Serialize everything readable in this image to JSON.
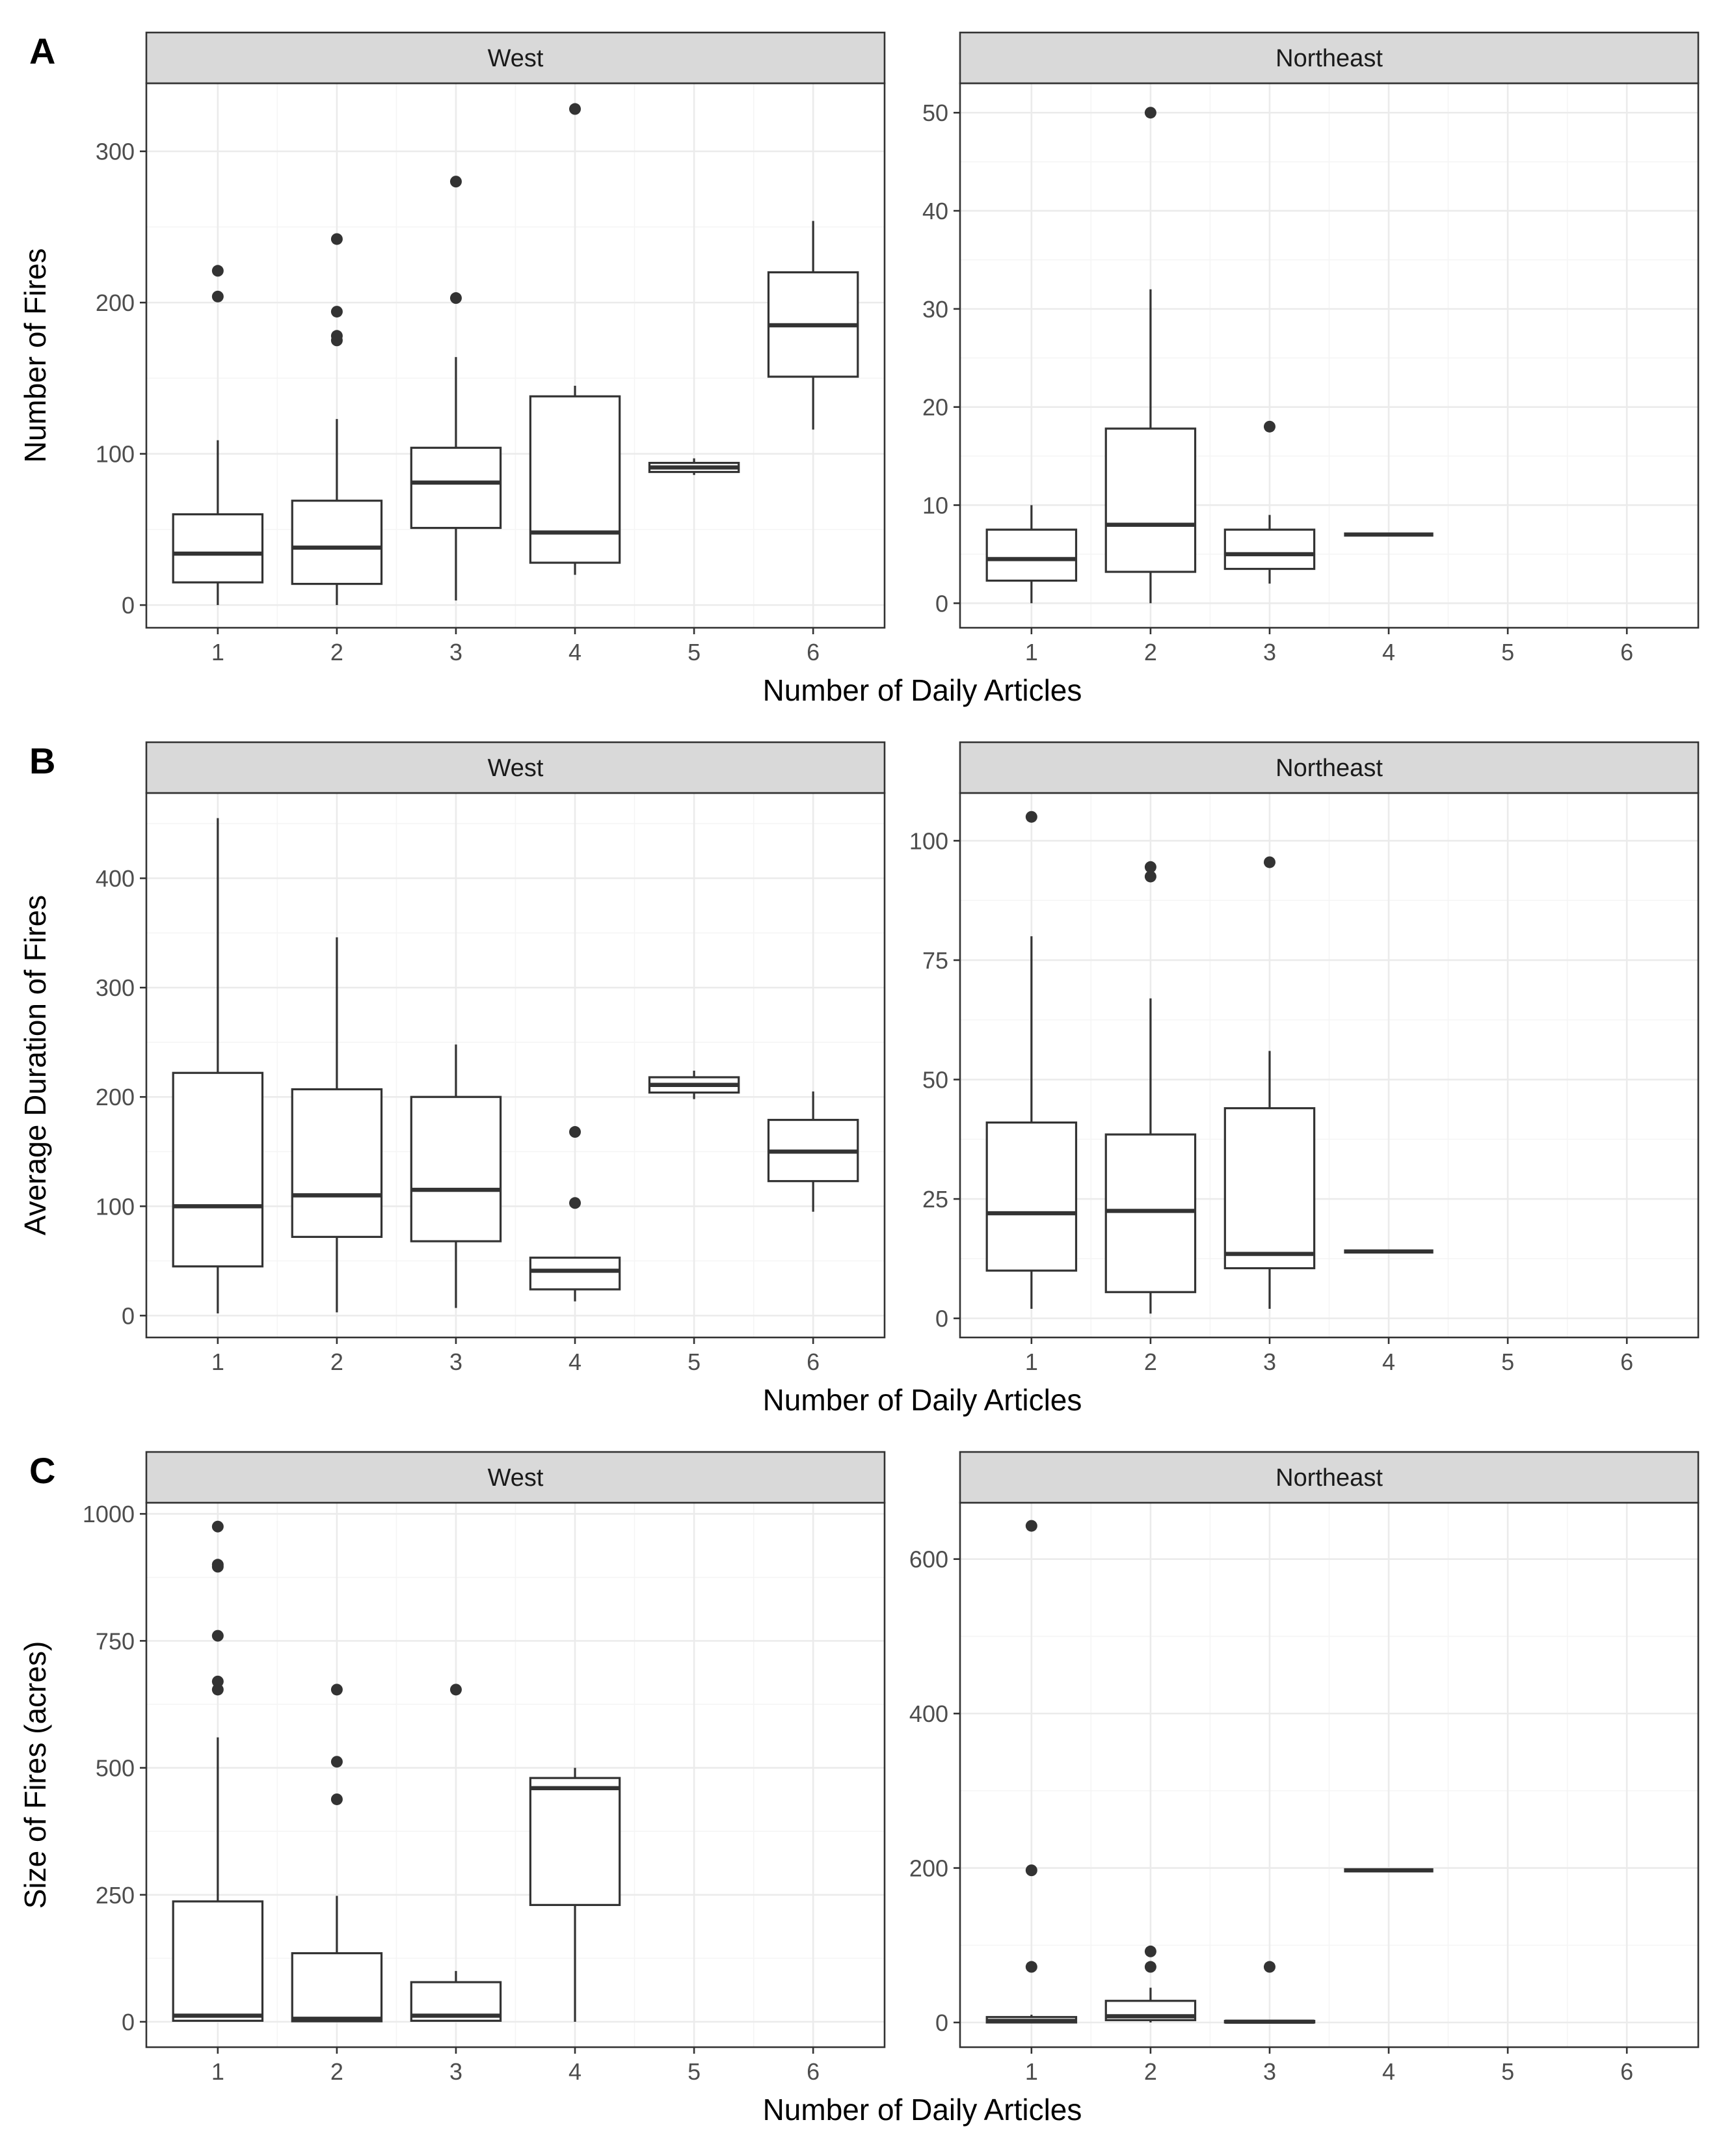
{
  "colors": {
    "strip_fill": "#d9d9d9",
    "grid_major": "#ebebeb",
    "grid_minor": "#f5f5f5",
    "box_stroke": "#333333",
    "point_fill": "#333333",
    "panel_border": "#333333"
  },
  "chart_data": [
    {
      "type": "boxplot",
      "panel_label": "A",
      "ylabel": "Number of Fires",
      "xlabel": "Number of Daily Articles",
      "facets": [
        {
          "title": "West",
          "ylim": [
            -15,
            345
          ],
          "yticks": [
            0,
            100,
            200,
            300
          ],
          "ytick_labels": [
            "0",
            "100",
            "200",
            "300"
          ],
          "xticks": [
            1,
            2,
            3,
            4,
            5,
            6
          ],
          "xtick_labels": [
            "1",
            "2",
            "3",
            "4",
            "5",
            "6"
          ],
          "boxes": [
            {
              "x": 1,
              "q1": 15,
              "median": 34,
              "q3": 60,
              "whisker_low": 0,
              "whisker_high": 109,
              "outliers": [
                204,
                221
              ]
            },
            {
              "x": 2,
              "q1": 14,
              "median": 38,
              "q3": 69,
              "whisker_low": 0,
              "whisker_high": 123,
              "outliers": [
                175,
                178,
                194,
                242
              ]
            },
            {
              "x": 3,
              "q1": 51,
              "median": 81,
              "q3": 104,
              "whisker_low": 3,
              "whisker_high": 164,
              "outliers": [
                203,
                280
              ]
            },
            {
              "x": 4,
              "q1": 28,
              "median": 48,
              "q3": 138,
              "whisker_low": 20,
              "whisker_high": 145,
              "outliers": [
                328
              ]
            },
            {
              "x": 5,
              "q1": 88,
              "median": 91,
              "q3": 94,
              "whisker_low": 86,
              "whisker_high": 97,
              "outliers": []
            },
            {
              "x": 6,
              "q1": 151,
              "median": 185,
              "q3": 220,
              "whisker_low": 116,
              "whisker_high": 254,
              "outliers": []
            }
          ]
        },
        {
          "title": "Northeast",
          "ylim": [
            -2.5,
            53
          ],
          "yticks": [
            0,
            10,
            20,
            30,
            40,
            50
          ],
          "ytick_labels": [
            "0",
            "10",
            "20",
            "30",
            "40",
            "50"
          ],
          "xticks": [
            1,
            2,
            3,
            4,
            5,
            6
          ],
          "xtick_labels": [
            "1",
            "2",
            "3",
            "4",
            "5",
            "6"
          ],
          "boxes": [
            {
              "x": 1,
              "q1": 2.3,
              "median": 4.5,
              "q3": 7.5,
              "whisker_low": 0,
              "whisker_high": 10,
              "outliers": []
            },
            {
              "x": 2,
              "q1": 3.2,
              "median": 8,
              "q3": 17.8,
              "whisker_low": 0,
              "whisker_high": 32,
              "outliers": [
                50
              ]
            },
            {
              "x": 3,
              "q1": 3.5,
              "median": 5,
              "q3": 7.5,
              "whisker_low": 2,
              "whisker_high": 9,
              "outliers": [
                18
              ]
            },
            {
              "x": 4,
              "q1": 7,
              "median": 7,
              "q3": 7,
              "whisker_low": 7,
              "whisker_high": 7,
              "outliers": []
            }
          ]
        }
      ]
    },
    {
      "type": "boxplot",
      "panel_label": "B",
      "ylabel": "Average Duration of Fires",
      "xlabel": "Number of Daily Articles",
      "facets": [
        {
          "title": "West",
          "ylim": [
            -20,
            478
          ],
          "yticks": [
            0,
            100,
            200,
            300,
            400
          ],
          "ytick_labels": [
            "0",
            "100",
            "200",
            "300",
            "400"
          ],
          "xticks": [
            1,
            2,
            3,
            4,
            5,
            6
          ],
          "xtick_labels": [
            "1",
            "2",
            "3",
            "4",
            "5",
            "6"
          ],
          "boxes": [
            {
              "x": 1,
              "q1": 45,
              "median": 100,
              "q3": 222,
              "whisker_low": 2,
              "whisker_high": 455,
              "outliers": []
            },
            {
              "x": 2,
              "q1": 72,
              "median": 110,
              "q3": 207,
              "whisker_low": 3,
              "whisker_high": 346,
              "outliers": []
            },
            {
              "x": 3,
              "q1": 68,
              "median": 115,
              "q3": 200,
              "whisker_low": 7,
              "whisker_high": 248,
              "outliers": []
            },
            {
              "x": 4,
              "q1": 24,
              "median": 41,
              "q3": 53,
              "whisker_low": 13,
              "whisker_high": 53,
              "outliers": [
                103,
                168
              ]
            },
            {
              "x": 5,
              "q1": 204,
              "median": 211,
              "q3": 218,
              "whisker_low": 198,
              "whisker_high": 224,
              "outliers": []
            },
            {
              "x": 6,
              "q1": 123,
              "median": 150,
              "q3": 179,
              "whisker_low": 95,
              "whisker_high": 205,
              "outliers": []
            }
          ]
        },
        {
          "title": "Northeast",
          "ylim": [
            -4,
            110
          ],
          "yticks": [
            0,
            25,
            50,
            75,
            100
          ],
          "ytick_labels": [
            "0",
            "25",
            "50",
            "75",
            "100"
          ],
          "xticks": [
            1,
            2,
            3,
            4,
            5,
            6
          ],
          "xtick_labels": [
            "1",
            "2",
            "3",
            "4",
            "5",
            "6"
          ],
          "boxes": [
            {
              "x": 1,
              "q1": 10,
              "median": 22,
              "q3": 41,
              "whisker_low": 2,
              "whisker_high": 80,
              "outliers": [
                105
              ]
            },
            {
              "x": 2,
              "q1": 5.5,
              "median": 22.5,
              "q3": 38.5,
              "whisker_low": 1,
              "whisker_high": 67,
              "outliers": [
                92.5,
                94.5
              ]
            },
            {
              "x": 3,
              "q1": 10.5,
              "median": 13.5,
              "q3": 44,
              "whisker_low": 2,
              "whisker_high": 56,
              "outliers": [
                95.5
              ]
            },
            {
              "x": 4,
              "q1": 14,
              "median": 14,
              "q3": 14,
              "whisker_low": 14,
              "whisker_high": 14,
              "outliers": []
            }
          ]
        }
      ]
    },
    {
      "type": "boxplot",
      "panel_label": "C",
      "ylabel": "Size of Fires (acres)",
      "xlabel": "Number of Daily Articles",
      "facets": [
        {
          "title": "West",
          "ylim": [
            -50,
            1022
          ],
          "yticks": [
            0,
            250,
            500,
            750,
            1000
          ],
          "ytick_labels": [
            "0",
            "250",
            "500",
            "750",
            "1000"
          ],
          "xticks": [
            1,
            2,
            3,
            4,
            5,
            6
          ],
          "xtick_labels": [
            "1",
            "2",
            "3",
            "4",
            "5",
            "6"
          ],
          "boxes": [
            {
              "x": 1,
              "q1": 2,
              "median": 12,
              "q3": 237,
              "whisker_low": 0,
              "whisker_high": 560,
              "outliers": [
                654,
                670,
                760,
                896,
                900,
                975
              ]
            },
            {
              "x": 2,
              "q1": 1,
              "median": 6,
              "q3": 135,
              "whisker_low": 0,
              "whisker_high": 248,
              "outliers": [
                438,
                512,
                654
              ]
            },
            {
              "x": 3,
              "q1": 2,
              "median": 12,
              "q3": 78,
              "whisker_low": 0,
              "whisker_high": 100,
              "outliers": [
                654
              ]
            },
            {
              "x": 4,
              "q1": 230,
              "median": 460,
              "q3": 480,
              "whisker_low": 0,
              "whisker_high": 500,
              "outliers": []
            }
          ]
        },
        {
          "title": "Northeast",
          "ylim": [
            -32,
            673
          ],
          "yticks": [
            0,
            200,
            400,
            600
          ],
          "ytick_labels": [
            "0",
            "200",
            "400",
            "600"
          ],
          "xticks": [
            1,
            2,
            3,
            4,
            5,
            6
          ],
          "xtick_labels": [
            "1",
            "2",
            "3",
            "4",
            "5",
            "6"
          ],
          "boxes": [
            {
              "x": 1,
              "q1": 0,
              "median": 2,
              "q3": 7,
              "whisker_low": 0,
              "whisker_high": 10,
              "outliers": [
                72,
                197,
                643
              ]
            },
            {
              "x": 2,
              "q1": 3,
              "median": 8,
              "q3": 28,
              "whisker_low": 0,
              "whisker_high": 45,
              "outliers": [
                72,
                92
              ]
            },
            {
              "x": 3,
              "q1": 0,
              "median": 1,
              "q3": 2,
              "whisker_low": 0,
              "whisker_high": 3,
              "outliers": [
                72
              ]
            },
            {
              "x": 4,
              "q1": 197,
              "median": 197,
              "q3": 197,
              "whisker_low": 197,
              "whisker_high": 197,
              "outliers": []
            }
          ]
        }
      ]
    }
  ]
}
